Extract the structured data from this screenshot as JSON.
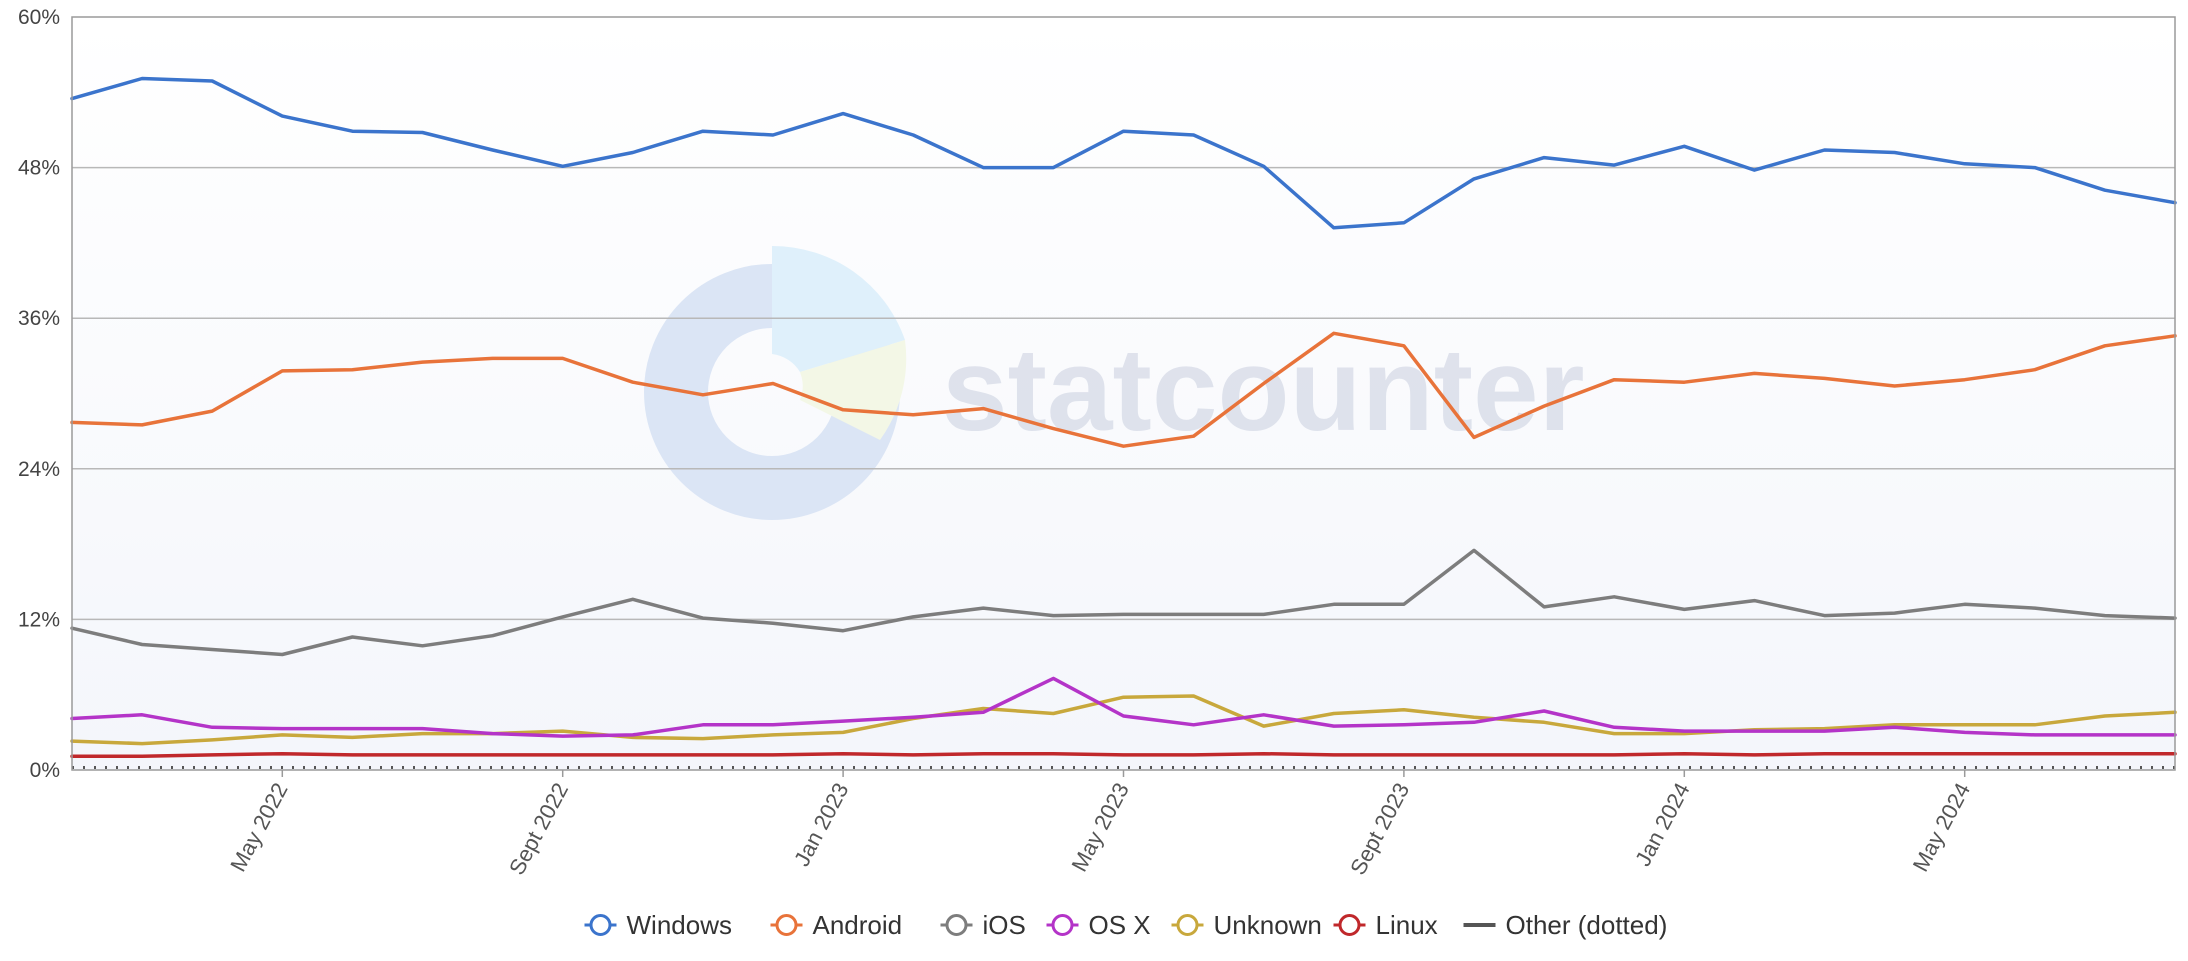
{
  "chart_data": {
    "type": "line",
    "title": "",
    "xlabel": "",
    "ylabel": "",
    "ylim": [
      0,
      60
    ],
    "y_ticks": [
      "0%",
      "12%",
      "24%",
      "36%",
      "48%",
      "60%"
    ],
    "y_tick_values": [
      0,
      12,
      24,
      36,
      48,
      60
    ],
    "x_tick_labels": [
      "May 2022",
      "Sept 2022",
      "Jan 2023",
      "May 2023",
      "Sept 2023",
      "Jan 2024",
      "May 2024"
    ],
    "x_tick_indices": [
      3,
      7,
      11,
      15,
      19,
      23,
      27
    ],
    "x": [
      "Feb 2022",
      "Mar 2022",
      "Apr 2022",
      "May 2022",
      "Jun 2022",
      "Jul 2022",
      "Aug 2022",
      "Sept 2022",
      "Oct 2022",
      "Nov 2022",
      "Dec 2022",
      "Jan 2023",
      "Feb 2023",
      "Mar 2023",
      "Apr 2023",
      "May 2023",
      "Jun 2023",
      "Jul 2023",
      "Aug 2023",
      "Sept 2023",
      "Oct 2023",
      "Nov 2023",
      "Dec 2023",
      "Jan 2024",
      "Feb 2024",
      "Mar 2024",
      "Apr 2024",
      "May 2024",
      "Jun 2024",
      "Jul 2024",
      "Aug 2024"
    ],
    "grid": true,
    "legend_position": "bottom",
    "watermark": "statcounter",
    "series": [
      {
        "name": "Windows",
        "color": "#3b74cc",
        "dotted": false,
        "values": [
          53.5,
          55.1,
          54.9,
          52.1,
          50.9,
          50.8,
          49.4,
          48.1,
          49.2,
          50.9,
          50.6,
          52.3,
          50.6,
          48.0,
          48.0,
          50.9,
          50.6,
          48.1,
          43.2,
          43.6,
          47.1,
          48.8,
          48.2,
          49.7,
          47.8,
          49.4,
          49.2,
          48.3,
          48.0,
          46.2,
          45.2
        ]
      },
      {
        "name": "Android",
        "color": "#e8733a",
        "dotted": false,
        "values": [
          27.7,
          27.5,
          28.6,
          31.8,
          31.9,
          32.5,
          32.8,
          32.8,
          30.9,
          29.9,
          30.8,
          28.7,
          28.3,
          28.8,
          27.2,
          25.8,
          26.6,
          30.8,
          34.8,
          33.8,
          26.5,
          29.0,
          31.1,
          30.9,
          31.6,
          31.2,
          30.6,
          31.1,
          31.9,
          33.8,
          34.6
        ]
      },
      {
        "name": "iOS",
        "color": "#7d7d7d",
        "dotted": false,
        "values": [
          11.3,
          10.0,
          9.6,
          9.2,
          10.6,
          9.9,
          10.7,
          12.2,
          13.6,
          12.1,
          11.7,
          11.1,
          12.2,
          12.9,
          12.3,
          12.4,
          12.4,
          12.4,
          13.2,
          13.2,
          17.5,
          13.0,
          13.8,
          12.8,
          13.5,
          12.3,
          12.5,
          13.2,
          12.9,
          12.3,
          12.1
        ]
      },
      {
        "name": "OS X",
        "color": "#b434c8",
        "dotted": false,
        "values": [
          4.1,
          4.4,
          3.4,
          3.3,
          3.3,
          3.3,
          2.9,
          2.7,
          2.8,
          3.6,
          3.6,
          3.9,
          4.2,
          4.6,
          7.3,
          4.3,
          3.6,
          4.4,
          3.5,
          3.6,
          3.8,
          4.7,
          3.4,
          3.1,
          3.1,
          3.1,
          3.4,
          3.0,
          2.8,
          2.8,
          2.8
        ]
      },
      {
        "name": "Unknown",
        "color": "#c8a83c",
        "dotted": false,
        "values": [
          2.3,
          2.1,
          2.4,
          2.8,
          2.6,
          2.9,
          2.9,
          3.1,
          2.6,
          2.5,
          2.8,
          3.0,
          4.1,
          4.9,
          4.5,
          5.8,
          5.9,
          3.5,
          4.5,
          4.8,
          4.2,
          3.8,
          2.9,
          2.9,
          3.2,
          3.3,
          3.6,
          3.6,
          3.6,
          4.3,
          4.6
        ]
      },
      {
        "name": "Linux",
        "color": "#c0282b",
        "dotted": false,
        "values": [
          1.1,
          1.1,
          1.2,
          1.3,
          1.2,
          1.2,
          1.2,
          1.2,
          1.2,
          1.2,
          1.2,
          1.3,
          1.2,
          1.3,
          1.3,
          1.2,
          1.2,
          1.3,
          1.2,
          1.2,
          1.2,
          1.2,
          1.2,
          1.3,
          1.2,
          1.3,
          1.3,
          1.3,
          1.3,
          1.3,
          1.3
        ]
      },
      {
        "name": "Other (dotted)",
        "color": "#555555",
        "dotted": true,
        "values": [
          0.2,
          0.2,
          0.2,
          0.2,
          0.2,
          0.2,
          0.2,
          0.2,
          0.2,
          0.2,
          0.2,
          0.2,
          0.2,
          0.2,
          0.2,
          0.2,
          0.2,
          0.2,
          0.2,
          0.2,
          0.2,
          0.2,
          0.2,
          0.2,
          0.2,
          0.2,
          0.2,
          0.2,
          0.2,
          0.2,
          0.2
        ]
      }
    ]
  }
}
